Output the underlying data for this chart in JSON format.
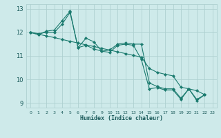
{
  "title": "",
  "xlabel": "Humidex (Indice chaleur)",
  "xlim": [
    -0.5,
    23.5
  ],
  "ylim": [
    8.8,
    13.2
  ],
  "yticks": [
    9,
    10,
    11,
    12,
    13
  ],
  "xtick_labels": [
    "0",
    "1",
    "2",
    "3",
    "4",
    "5",
    "6",
    "7",
    "8",
    "9",
    "10",
    "11",
    "12",
    "13",
    "14",
    "15",
    "16",
    "17",
    "18",
    "19",
    "20",
    "21",
    "22",
    "23"
  ],
  "background_color": "#ceeaea",
  "grid_color": "#aed0d0",
  "line_color": "#1a7a6e",
  "line1_x": [
    0,
    1,
    2,
    3,
    4,
    5,
    6,
    7,
    8,
    9,
    10,
    11,
    12,
    13,
    14,
    15,
    16,
    17,
    18,
    19,
    20,
    21,
    22
  ],
  "line1_y": [
    12.0,
    11.95,
    12.0,
    12.0,
    12.35,
    12.85,
    11.35,
    11.45,
    11.3,
    11.2,
    11.15,
    11.45,
    11.5,
    11.45,
    10.85,
    9.6,
    9.65,
    9.55,
    9.55,
    9.15,
    9.6,
    9.15,
    9.35
  ],
  "line2_x": [
    0,
    1,
    2,
    3,
    4,
    5,
    6,
    7,
    8,
    9,
    10,
    11,
    12,
    13,
    14,
    15,
    16,
    17,
    18,
    19,
    20,
    21,
    22
  ],
  "line2_y": [
    12.0,
    11.92,
    11.85,
    11.78,
    11.7,
    11.62,
    11.55,
    11.47,
    11.4,
    11.32,
    11.25,
    11.17,
    11.1,
    11.02,
    10.95,
    10.47,
    10.3,
    10.22,
    10.15,
    9.67,
    9.6,
    9.52,
    9.35
  ],
  "line3_x": [
    0,
    1,
    2,
    3,
    4,
    5,
    6,
    7,
    8,
    9,
    10,
    11,
    12,
    13,
    14,
    15,
    16,
    17,
    18,
    19,
    20,
    21,
    22
  ],
  "line3_y": [
    12.0,
    11.9,
    12.05,
    12.1,
    12.5,
    12.9,
    11.35,
    11.75,
    11.6,
    11.2,
    11.25,
    11.5,
    11.55,
    11.5,
    11.5,
    9.85,
    9.7,
    9.6,
    9.6,
    9.2,
    9.6,
    9.1,
    9.35
  ]
}
